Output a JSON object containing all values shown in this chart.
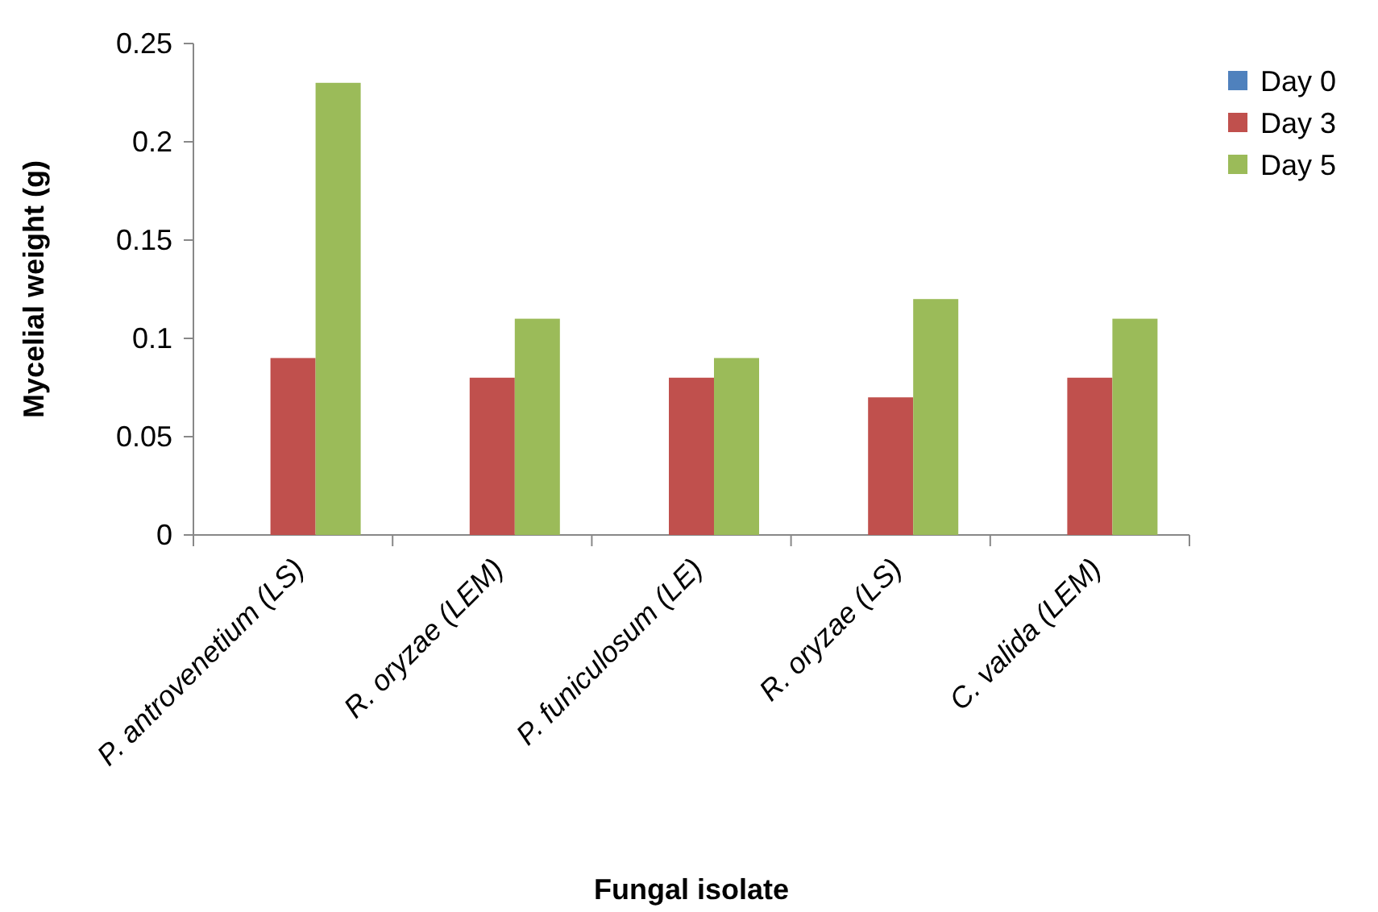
{
  "chart_data": {
    "type": "bar",
    "xlabel": "Fungal isolate",
    "ylabel": "Mycelial weight (g)",
    "categories": [
      "P. antrovenetium (LS)",
      "R. oryzae (LEM)",
      "P. funiculosum (LE)",
      "R. oryzae (LS)",
      "C. valida (LEM)"
    ],
    "series": [
      {
        "name": "Day 0",
        "color": "#4f81bd",
        "values": [
          0,
          0,
          0,
          0,
          0
        ]
      },
      {
        "name": "Day 3",
        "color": "#c0504d",
        "values": [
          0.09,
          0.08,
          0.08,
          0.07,
          0.08
        ]
      },
      {
        "name": "Day 5",
        "color": "#9bbb59",
        "values": [
          0.23,
          0.11,
          0.09,
          0.12,
          0.11
        ]
      }
    ],
    "ylim": [
      0,
      0.25
    ],
    "yticks": [
      0,
      0.05,
      0.1,
      0.15,
      0.2,
      0.25
    ],
    "grid": false,
    "legend": "right"
  }
}
